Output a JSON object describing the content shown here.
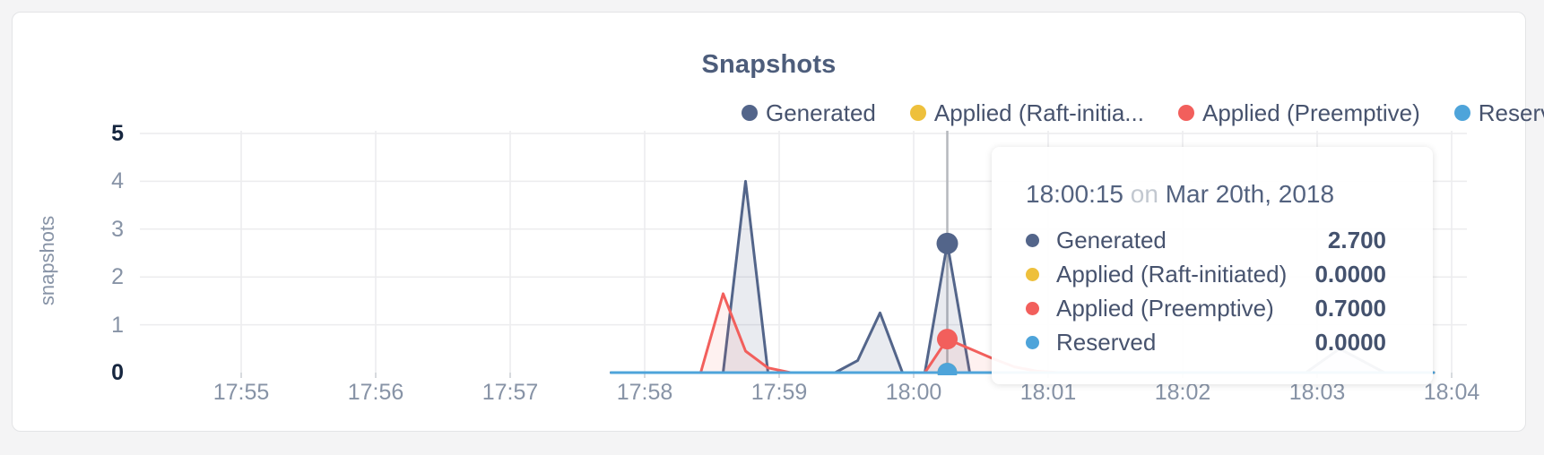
{
  "card": {
    "background": "#ffffff",
    "border_color": "#e3e4e6"
  },
  "chart_data": {
    "type": "area",
    "title": "Snapshots",
    "ylabel": "snapshots",
    "ylim": [
      0,
      5
    ],
    "y_ticks": [
      0,
      1,
      2,
      3,
      4,
      5
    ],
    "y_ticks_bold": [
      0,
      5
    ],
    "x_ticks": [
      "17:55",
      "17:56",
      "17:57",
      "17:58",
      "17:59",
      "18:00",
      "18:01",
      "18:02",
      "18:03",
      "18:04"
    ],
    "grid": true,
    "legend_position": "top-right",
    "colors": {
      "grid": "#ececee",
      "axis_tick": "#d7dade",
      "crosshair": "#b5b8bd"
    },
    "series": [
      {
        "name": "Generated",
        "legend_label": "Generated",
        "color": "#53658a",
        "fill": "rgba(83,101,138,0.13)",
        "points": [
          [
            "17:57:45",
            0
          ],
          [
            "17:58:35",
            0
          ],
          [
            "17:58:45",
            4.0
          ],
          [
            "17:58:55",
            0
          ],
          [
            "17:59:25",
            0
          ],
          [
            "17:59:35",
            0.25
          ],
          [
            "17:59:45",
            1.25
          ],
          [
            "17:59:55",
            0
          ],
          [
            "18:00:05",
            0
          ],
          [
            "18:00:15",
            2.7
          ],
          [
            "18:00:25",
            0
          ],
          [
            "18:02:55",
            0
          ],
          [
            "18:03:10",
            0.5
          ],
          [
            "18:03:30",
            0
          ],
          [
            "18:03:52",
            0
          ]
        ]
      },
      {
        "name": "Applied (Raft-initiated)",
        "legend_label": "Applied (Raft-initia...",
        "color": "#eec03c",
        "fill": "rgba(238,192,60,0.10)",
        "points": [
          [
            "17:57:45",
            0
          ],
          [
            "18:03:52",
            0
          ]
        ]
      },
      {
        "name": "Applied (Preemptive)",
        "legend_label": "Applied (Preemptive)",
        "color": "#f25f5c",
        "fill": "rgba(242,95,92,0.09)",
        "points": [
          [
            "17:57:45",
            0
          ],
          [
            "17:58:25",
            0
          ],
          [
            "17:58:35",
            1.65
          ],
          [
            "17:58:45",
            0.45
          ],
          [
            "17:58:55",
            0.1
          ],
          [
            "17:59:05",
            0
          ],
          [
            "18:00:05",
            0
          ],
          [
            "18:00:15",
            0.7
          ],
          [
            "18:00:25",
            0.5
          ],
          [
            "18:00:35",
            0.3
          ],
          [
            "18:00:45",
            0.12
          ],
          [
            "18:00:55",
            0.03
          ],
          [
            "18:01:05",
            0
          ],
          [
            "18:03:52",
            0
          ]
        ]
      },
      {
        "name": "Reserved",
        "legend_label": "Reserved",
        "color": "#4ea4da",
        "fill": "rgba(78,164,218,0.10)",
        "points": [
          [
            "17:57:45",
            0
          ],
          [
            "18:03:52",
            0
          ]
        ]
      }
    ],
    "hover": {
      "time": "18:00:15",
      "values": [
        2.7,
        0,
        0.7,
        0
      ],
      "marker_radii": [
        12,
        11,
        11.5,
        11
      ]
    }
  },
  "tooltip": {
    "time": "18:00:15",
    "connector": "on",
    "date": "Mar 20th, 2018",
    "rows": [
      {
        "label": "Generated",
        "value": "2.700",
        "color": "#53658a"
      },
      {
        "label": "Applied (Raft-initiated)",
        "value": "0.0000",
        "color": "#eec03c"
      },
      {
        "label": "Applied (Preemptive)",
        "value": "0.7000",
        "color": "#f25f5c"
      },
      {
        "label": "Reserved",
        "value": "0.0000",
        "color": "#4ea4da"
      }
    ]
  }
}
